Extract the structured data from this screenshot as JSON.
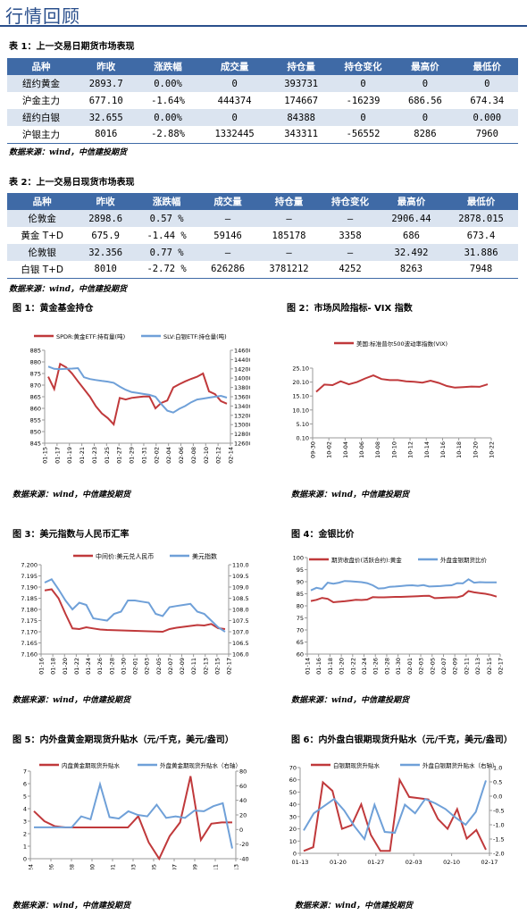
{
  "page_title": "行情回顾",
  "table1": {
    "title": "表 1：上一交易日期货市场表现",
    "headers": [
      "品种",
      "昨收",
      "涨跌幅",
      "成交量",
      "持仓量",
      "持仓变化",
      "最高价",
      "最低价"
    ],
    "rows": [
      [
        "纽约黄金",
        "2893.7",
        "0.00%",
        "0",
        "393731",
        "0",
        "0",
        "0"
      ],
      [
        "沪金主力",
        "677.10",
        "-1.64%",
        "444374",
        "174667",
        "-16239",
        "686.56",
        "674.34"
      ],
      [
        "纽约白银",
        "32.655",
        "0.00%",
        "0",
        "84388",
        "0",
        "0",
        "0.000"
      ],
      [
        "沪银主力",
        "8016",
        "-2.88%",
        "1332445",
        "343311",
        "-56552",
        "8286",
        "7960"
      ]
    ],
    "source": "数据来源：wind，中信建投期货"
  },
  "table2": {
    "title": "表 2：上一交易日现货市场表现",
    "headers": [
      "品种",
      "昨收",
      "涨跌幅",
      "成交量",
      "持仓量",
      "持仓变化",
      "最高价",
      "最低价"
    ],
    "rows": [
      [
        "伦敦金",
        "2898.6",
        "0.57 %",
        "–",
        "–",
        "–",
        "2906.44",
        "2878.015"
      ],
      [
        "黄金 T+D",
        "675.9",
        "-1.44 %",
        "59146",
        "185178",
        "3358",
        "686",
        "673.4"
      ],
      [
        "伦敦银",
        "32.356",
        "0.77 %",
        "–",
        "–",
        "–",
        "32.492",
        "31.886"
      ],
      [
        "白银 T+D",
        "8010",
        "-2.72 %",
        "626286",
        "3781212",
        "4252",
        "8263",
        "7948"
      ]
    ],
    "source": "数据来源：wind，中信建投期货"
  },
  "figures": {
    "fig1": {
      "title": "图 1：黄金基金持仓",
      "source": "数据来源：wind，中信建投期货"
    },
    "fig2": {
      "title": "图 2：市场风险指标- VIX 指数",
      "source": "数据来源：wind，中信建投期货"
    },
    "fig3": {
      "title": "图 3：美元指数与人民币汇率",
      "source": "数据来源：wind，中信建投期货"
    },
    "fig4": {
      "title": "图 4：金银比价",
      "source": "数据来源：wind，中信建投期货"
    },
    "fig5": {
      "title": "图 5：内外盘黄金期现货升贴水（元/千克，美元/盎司）",
      "source": "数据来源：wind，中信建投期货"
    },
    "fig6": {
      "title": "图 6：内外盘白银期现货升贴水（元/千克，美元/盎司）",
      "source": "数据来源：wind，中信建投期货"
    }
  },
  "chart_data": [
    {
      "id": "fig1",
      "type": "line",
      "x": [
        "01-15",
        "01-16",
        "01-17",
        "01-18",
        "01-19",
        "01-20",
        "01-21",
        "01-22",
        "01-23",
        "01-24",
        "01-25",
        "01-26",
        "01-27",
        "01-28",
        "01-29",
        "01-30",
        "01-31",
        "02-01",
        "02-02",
        "02-03",
        "02-04",
        "02-05",
        "02-06",
        "02-07",
        "02-08",
        "02-09",
        "02-10",
        "02-11",
        "02-12",
        "02-13",
        "02-14"
      ],
      "xticks": [
        "01-15",
        "01-17",
        "01-19",
        "01-21",
        "01-23",
        "01-25",
        "01-27",
        "01-29",
        "01-31",
        "02-02",
        "02-04",
        "02-06",
        "02-08",
        "02-10",
        "02-12",
        "02-14"
      ],
      "ylim": [
        845,
        885
      ],
      "yticks": [
        845,
        850,
        855,
        860,
        865,
        870,
        875,
        880,
        885
      ],
      "y2lim": [
        12600,
        14600
      ],
      "y2ticks": [
        12600,
        12800,
        13000,
        13200,
        13400,
        13600,
        13800,
        14000,
        14200,
        14400,
        14600
      ],
      "series": [
        {
          "name": "SPDR:黄金ETF:持有量(吨)",
          "axis": "left",
          "color": "#c0393b",
          "values": [
            873.6,
            868.3,
            879.1,
            877.7,
            875.0,
            871.6,
            868.3,
            865.0,
            860.9,
            857.8,
            855.8,
            853.1,
            864.5,
            863.8,
            864.5,
            864.8,
            865.1,
            865.1,
            860.0,
            862.4,
            863.4,
            869.0,
            870.4,
            871.6,
            872.7,
            873.6,
            875.0,
            867.3,
            866.1,
            863.1,
            862.0
          ]
        },
        {
          "name": "SLV:白银ETF:持仓量(吨)",
          "axis": "right",
          "color": "#6fa0d8",
          "values": [
            14250,
            14200,
            14195,
            14200,
            14205,
            14215,
            14020,
            13980,
            13960,
            13940,
            13925,
            13900,
            13820,
            13750,
            13700,
            13680,
            13660,
            13640,
            13600,
            13440,
            13300,
            13260,
            13340,
            13400,
            13480,
            13540,
            13560,
            13580,
            13600,
            13620,
            13580
          ]
        }
      ]
    },
    {
      "id": "fig2",
      "type": "line",
      "xticks": [
        "09-30",
        "10-02",
        "10-04",
        "10-06",
        "10-08",
        "10-10",
        "10-12",
        "10-14",
        "10-16",
        "10-18",
        "10-20",
        "10-22"
      ],
      "ylim": [
        0.1,
        25.1
      ],
      "yticks": [
        0.1,
        5.1,
        10.1,
        15.1,
        20.1,
        25.1
      ],
      "series": [
        {
          "name": "美国:标准普尔500波动率指数(VIX)",
          "axis": "left",
          "color": "#c0393b",
          "values": [
            16.6,
            19.2,
            19.0,
            20.4,
            19.3,
            20.1,
            21.4,
            22.5,
            21.2,
            20.8,
            20.8,
            20.4,
            20.2,
            19.9,
            20.6,
            19.8,
            18.7,
            18.1,
            18.3,
            18.5,
            18.4,
            19.3
          ]
        }
      ]
    },
    {
      "id": "fig3",
      "type": "line",
      "xticks": [
        "01-16",
        "01-18",
        "01-20",
        "01-22",
        "01-24",
        "01-26",
        "01-28",
        "01-30",
        "02-01",
        "02-03",
        "02-05",
        "02-07",
        "02-09",
        "02-11",
        "02-13",
        "02-15",
        "02-17"
      ],
      "ylim": [
        7.16,
        7.2
      ],
      "yticks": [
        7.16,
        7.165,
        7.17,
        7.175,
        7.18,
        7.185,
        7.19,
        7.195,
        7.2
      ],
      "y2lim": [
        106,
        110
      ],
      "y2ticks": [
        106,
        106.5,
        107,
        107.5,
        108,
        108.5,
        109,
        109.5,
        110
      ],
      "series": [
        {
          "name": "中间价:美元兑人民币",
          "axis": "left",
          "color": "#c0393b",
          "values": [
            7.1885,
            7.189,
            7.185,
            7.178,
            7.1715,
            7.1712,
            7.172,
            7.1715,
            7.171,
            7.1708,
            7.1707,
            7.1706,
            7.1705,
            7.1704,
            7.1703,
            7.1702,
            7.1701,
            7.17,
            7.1712,
            7.1718,
            7.1722,
            7.1726,
            7.173,
            7.1728,
            7.1735,
            7.1716,
            7.1712
          ]
        },
        {
          "name": "美元指数",
          "axis": "right",
          "color": "#6fa0d8",
          "values": [
            109.2,
            109.35,
            108.9,
            108.4,
            108.0,
            108.3,
            108.2,
            107.6,
            107.55,
            107.5,
            107.8,
            107.9,
            108.4,
            108.4,
            108.35,
            108.3,
            107.8,
            107.7,
            108.1,
            108.15,
            108.2,
            108.25,
            107.9,
            107.8,
            107.5,
            107.2,
            107.0
          ]
        }
      ]
    },
    {
      "id": "fig4",
      "type": "line",
      "xticks": [
        "01-14",
        "01-16",
        "01-18",
        "01-20",
        "01-22",
        "01-24",
        "01-26",
        "01-28",
        "01-30",
        "02-01",
        "02-03",
        "02-05",
        "02-07",
        "02-09",
        "02-11",
        "02-13",
        "02-15",
        "02-17"
      ],
      "ylim": [
        60,
        100
      ],
      "yticks": [
        60,
        65,
        70,
        75,
        80,
        85,
        90,
        95,
        100
      ],
      "series": [
        {
          "name": "期货收盘价(活跃合约):黄金",
          "axis": "left",
          "color": "#c0393b",
          "values": [
            82.0,
            82.5,
            83.3,
            82.9,
            81.5,
            81.7,
            81.9,
            82.2,
            82.5,
            82.4,
            82.6,
            83.6,
            83.5,
            83.5,
            83.6,
            83.7,
            83.7,
            83.8,
            83.9,
            84.0,
            84.1,
            84.2,
            83.2,
            83.3,
            83.4,
            83.5,
            83.5,
            84.2,
            86.1,
            85.6,
            85.3,
            85.0,
            84.5,
            83.8
          ]
        },
        {
          "name": "外盘金银期货比价",
          "axis": "left",
          "color": "#6fa0d8",
          "values": [
            86.4,
            87.5,
            87.0,
            89.6,
            89.2,
            89.6,
            90.3,
            90.2,
            90.0,
            89.8,
            89.4,
            88.5,
            87.2,
            87.3,
            87.9,
            88.0,
            88.2,
            88.4,
            88.5,
            88.3,
            88.6,
            88.0,
            88.1,
            88.2,
            88.4,
            88.5,
            89.4,
            89.3,
            91.0,
            89.6,
            89.8,
            89.7,
            89.7,
            89.7
          ]
        }
      ]
    },
    {
      "id": "fig5",
      "type": "line",
      "xticks": [
        "01-24",
        "01-26",
        "01-28",
        "01-30",
        "02-01",
        "02-03",
        "02-05",
        "02-07",
        "02-09",
        "02-11",
        "02-13"
      ],
      "ylim": [
        0,
        7
      ],
      "yticks": [
        0,
        1,
        2,
        3,
        4,
        5,
        6,
        7
      ],
      "y2lim": [
        -40,
        80
      ],
      "y2ticks": [
        -40,
        -20,
        0,
        20,
        40,
        60,
        80
      ],
      "series": [
        {
          "name": "内盘黄金期现货升贴水",
          "axis": "left",
          "color": "#c0393b",
          "values": [
            3.8,
            3.0,
            2.6,
            2.5,
            2.5,
            2.5,
            2.5,
            2.5,
            2.5,
            2.5,
            3.4,
            1.3,
            0.0,
            1.8,
            2.9,
            6.6,
            1.5,
            2.8,
            2.9,
            2.9
          ]
        },
        {
          "name": "外盘黄金期现货升贴水（右轴）",
          "axis": "right",
          "color": "#6fa0d8",
          "values": [
            3,
            3,
            3,
            3,
            3,
            18,
            14,
            62,
            17,
            15,
            25,
            20,
            18,
            34,
            16,
            18,
            16,
            26,
            25,
            32,
            36,
            -26
          ]
        }
      ]
    },
    {
      "id": "fig6",
      "type": "line",
      "xticks": [
        "01-13",
        "01-20",
        "01-27",
        "02-03",
        "02-10",
        "02-17"
      ],
      "ylim": [
        0,
        70
      ],
      "yticks": [
        0,
        10,
        20,
        30,
        40,
        50,
        60,
        70
      ],
      "y2lim": [
        -2.0,
        1.0
      ],
      "y2ticks": [
        -2.0,
        -1.5,
        -1.0,
        -0.5,
        0.0,
        0.5,
        1.0
      ],
      "series": [
        {
          "name": "白银期现货升贴水",
          "axis": "left",
          "color": "#c0393b",
          "values": [
            2,
            5,
            58,
            51,
            20,
            23,
            40,
            15,
            2,
            2,
            60,
            46,
            45,
            44,
            28,
            20,
            36,
            12,
            19,
            3
          ]
        },
        {
          "name": "外盘白银期货升贴水（右轴）",
          "axis": "right",
          "color": "#6fa0d8",
          "values": [
            -1.2,
            -0.6,
            -0.35,
            -0.1,
            -0.5,
            -1.05,
            -1.5,
            -0.3,
            -1.25,
            -1.28,
            -0.3,
            -0.6,
            -0.1,
            -0.25,
            -0.45,
            -0.75,
            -1.0,
            -0.55,
            0.55
          ]
        }
      ]
    }
  ]
}
